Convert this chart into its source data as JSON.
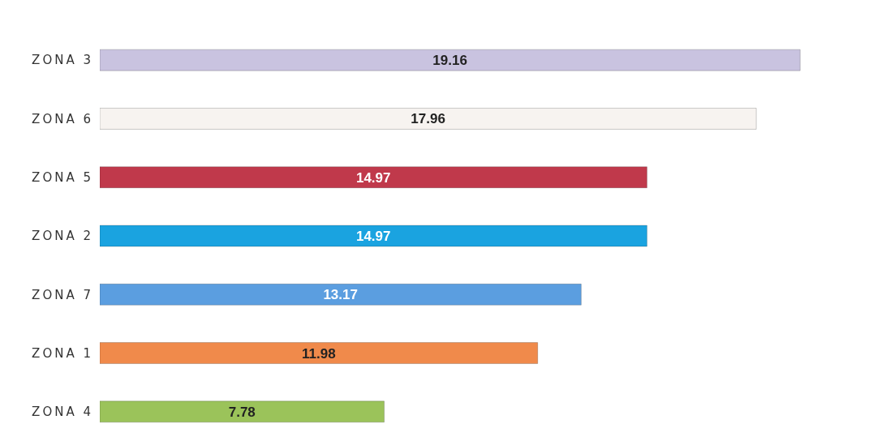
{
  "chart_data": {
    "type": "bar",
    "orientation": "horizontal",
    "categories": [
      "ZONA 3",
      "ZONA 6",
      "ZONA 5",
      "ZONA 2",
      "ZONA 7",
      "ZONA 1",
      "ZONA 4"
    ],
    "values": [
      19.16,
      17.96,
      14.97,
      14.97,
      13.17,
      11.98,
      7.78
    ],
    "colors": [
      "#c9c3e0",
      "#f7f3f0",
      "#c0394b",
      "#1aa3e0",
      "#5b9ee0",
      "#f08a4b",
      "#9bc35a"
    ],
    "data_labels": true
  }
}
